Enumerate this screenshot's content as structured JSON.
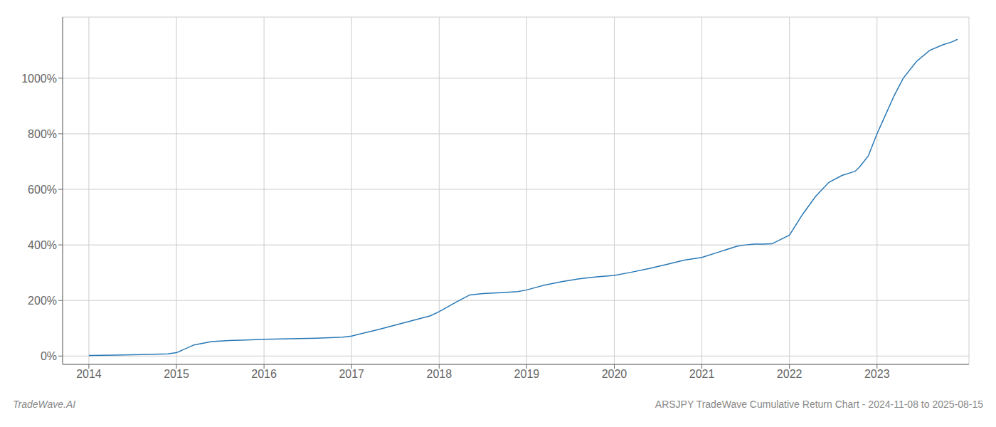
{
  "chart_data": {
    "type": "line",
    "title": "ARSJPY TradeWave Cumulative Return Chart - 2024-11-08 to 2025-08-15",
    "annotations": [
      "TradeWave.AI"
    ],
    "color": "#2878b5",
    "grid": true,
    "x": [
      2014.0,
      2014.3,
      2014.6,
      2014.9,
      2015.0,
      2015.2,
      2015.4,
      2015.6,
      2015.8,
      2016.0,
      2016.3,
      2016.6,
      2016.9,
      2017.0,
      2017.3,
      2017.6,
      2017.9,
      2018.0,
      2018.2,
      2018.35,
      2018.5,
      2018.7,
      2018.9,
      2019.0,
      2019.2,
      2019.4,
      2019.6,
      2019.8,
      2020.0,
      2020.2,
      2020.4,
      2020.6,
      2020.8,
      2021.0,
      2021.2,
      2021.4,
      2021.5,
      2021.6,
      2021.7,
      2021.8,
      2022.0,
      2022.15,
      2022.3,
      2022.45,
      2022.6,
      2022.7,
      2022.75,
      2022.8,
      2022.9,
      2023.0,
      2023.1,
      2023.2,
      2023.3,
      2023.45,
      2023.6,
      2023.75,
      2023.85,
      2023.92
    ],
    "values": [
      2.0,
      3.0,
      5.0,
      8.0,
      12.0,
      40.0,
      52.0,
      56.0,
      58.0,
      60.0,
      62.0,
      64.0,
      68.0,
      72.0,
      95.0,
      120.0,
      145.0,
      160.0,
      195.0,
      220.0,
      225.0,
      228.0,
      232.0,
      238.0,
      255.0,
      268.0,
      278.0,
      285.0,
      290.0,
      302.0,
      315.0,
      330.0,
      345.0,
      355.0,
      375.0,
      395.0,
      400.0,
      403.0,
      403.0,
      404.0,
      435.0,
      510.0,
      575.0,
      625.0,
      650.0,
      660.0,
      665.0,
      680.0,
      720.0,
      800.0,
      870.0,
      940.0,
      1000.0,
      1060.0,
      1100.0,
      1120.0,
      1130.0,
      1140.0
    ],
    "xlim": [
      2013.7,
      2024.05
    ],
    "xticks": [
      2014,
      2015,
      2016,
      2017,
      2018,
      2019,
      2020,
      2021,
      2022,
      2023
    ],
    "ylim": [
      -30,
      1220
    ],
    "yticks": [
      {
        "value": 0,
        "label": "0%"
      },
      {
        "value": 200,
        "label": "200%"
      },
      {
        "value": 400,
        "label": "400%"
      },
      {
        "value": 600,
        "label": "600%"
      },
      {
        "value": 800,
        "label": "800%"
      },
      {
        "value": 1000,
        "label": "1000%"
      }
    ]
  }
}
